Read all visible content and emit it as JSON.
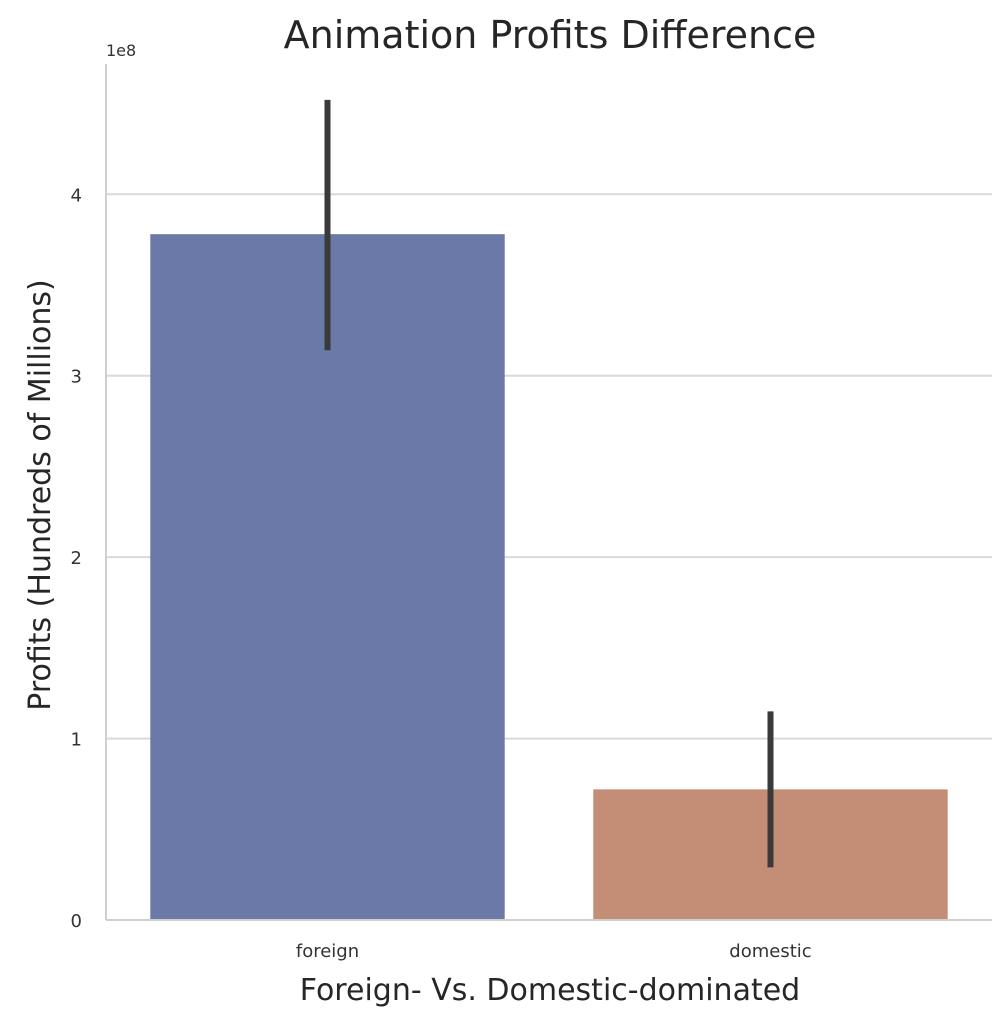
{
  "chart_data": {
    "type": "bar",
    "title": "Animation Profits Difference",
    "xlabel": "Foreign- Vs. Domestic-dominated",
    "ylabel": "Profits (Hundreds of Millions)",
    "y_offset_label": "1e8",
    "categories": [
      "foreign",
      "domestic"
    ],
    "values": [
      378000000,
      72000000
    ],
    "error_bars": [
      {
        "low": 314000000,
        "high": 452000000
      },
      {
        "low": 29000000,
        "high": 115000000
      }
    ],
    "yticks": [
      0,
      100000000,
      200000000,
      300000000,
      400000000
    ],
    "ytick_labels": [
      "0",
      "1",
      "2",
      "3",
      "4"
    ],
    "ylim": [
      0,
      474000000
    ],
    "grid": "horizontal",
    "bar_colors": [
      "#6a79a7",
      "#c48d75"
    ],
    "error_bar_color": "#3a3a3a",
    "grid_color": "#d9d9d9",
    "axis_color": "#cfcfcf"
  }
}
